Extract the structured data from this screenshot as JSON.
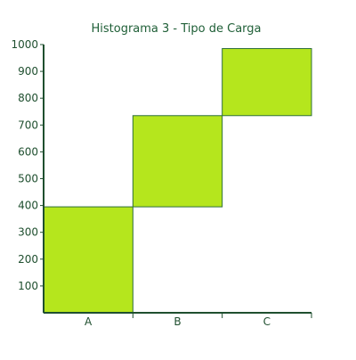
{
  "chart_data": {
    "type": "bar",
    "title": "Histograma 3 - Tipo de Carga",
    "xlabel": "",
    "ylabel": "",
    "categories": [
      "A",
      "B",
      "C"
    ],
    "series": [
      {
        "start": [
          0,
          395,
          735
        ],
        "end": [
          395,
          735,
          985
        ]
      }
    ],
    "ylim": [
      0,
      1000
    ],
    "yticks": [
      100,
      200,
      300,
      400,
      500,
      600,
      700,
      800,
      900,
      1000
    ],
    "grid": false,
    "legend": "none",
    "colors": {
      "bar_fill": "#b5e61d",
      "bar_stroke": "#2f6f3b",
      "axis": "#1f4f2f",
      "text": "#1f4f2f",
      "title": "#1f5f37"
    }
  }
}
